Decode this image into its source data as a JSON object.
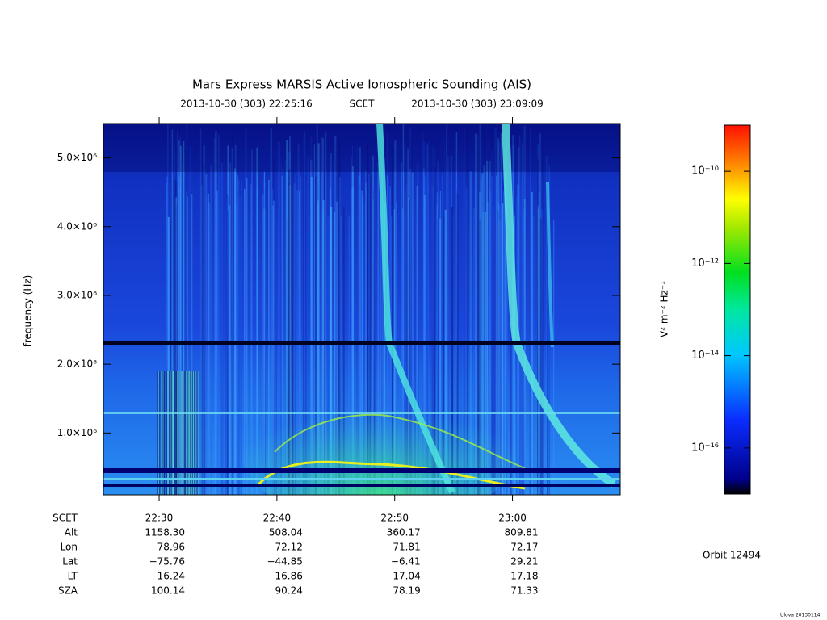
{
  "chart_data": {
    "type": "spectrogram",
    "title": "Mars Express MARSIS Active Ionospheric Sounding (AIS)",
    "start_label": "2013-10-30 (303) 22:25:16",
    "time_label": "SCET",
    "end_label": "2013-10-30 (303) 23:09:09",
    "y_label": "frequency (Hz)",
    "ylim": [
      100000,
      5500000
    ],
    "yticks": [
      {
        "value": 1000000,
        "label": "1.0×10⁶"
      },
      {
        "value": 2000000,
        "label": "2.0×10⁶"
      },
      {
        "value": 3000000,
        "label": "3.0×10⁶"
      },
      {
        "value": 4000000,
        "label": "4.0×10⁶"
      },
      {
        "value": 5000000,
        "label": "5.0×10⁶"
      }
    ],
    "xticks": [
      "22:30",
      "22:40",
      "22:50",
      "23:00"
    ],
    "ephemeris_label": "SCET",
    "ephemeris": [
      {
        "label": "Alt",
        "values": [
          "1158.30",
          "508.04",
          "360.17",
          "809.81"
        ]
      },
      {
        "label": "Lon",
        "values": [
          "78.96",
          "72.12",
          "71.81",
          "72.17"
        ]
      },
      {
        "label": "Lat",
        "values": [
          "−75.76",
          "−44.85",
          "−6.41",
          "29.21"
        ]
      },
      {
        "label": "LT",
        "values": [
          "16.24",
          "16.86",
          "17.04",
          "17.18"
        ]
      },
      {
        "label": "SZA",
        "values": [
          "100.14",
          "90.24",
          "78.19",
          "71.33"
        ]
      }
    ],
    "colorbar_label": "V² m⁻² Hz⁻¹",
    "clim": [
      1e-17,
      1e-09
    ],
    "log_scale": true,
    "cticks": [
      {
        "value": 1e-10,
        "label": "10⁻¹⁰"
      },
      {
        "value": 1e-12,
        "label": "10⁻¹²"
      },
      {
        "value": 1e-14,
        "label": "10⁻¹⁴"
      },
      {
        "value": 1e-16,
        "label": "10⁻¹⁶"
      }
    ],
    "orbit": "Orbit 12494",
    "footer": "Ulova 20130114"
  }
}
